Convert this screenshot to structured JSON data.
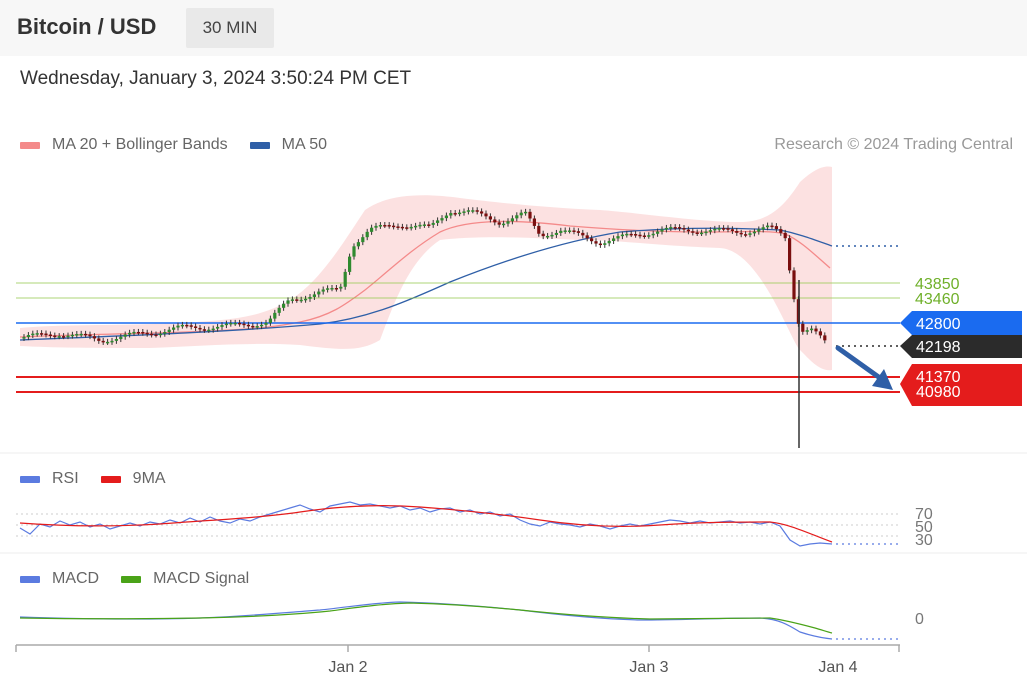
{
  "header": {
    "title": "Bitcoin / USD",
    "timeframe": "30 MIN"
  },
  "datetime": "Wednesday, January 3, 2024 3:50:24 PM CET",
  "legend": {
    "bb_label": "MA 20 + Bollinger Bands",
    "ma50_label": "MA 50",
    "credit": "Research © 2024 Trading Central"
  },
  "rsi_legend": {
    "rsi": "RSI",
    "ma9": "9MA"
  },
  "macd_legend": {
    "macd": "MACD",
    "signal": "MACD Signal"
  },
  "colors": {
    "bb": "#f48a8a",
    "ma50": "#2f5fa7",
    "resistance": "#8cc63e",
    "support": "#e41c1c",
    "pivot": "#1a6bf0",
    "current": "#2b2b2b",
    "arrow": "#2f5fa7",
    "rsi": "#5b7be0",
    "macd_signal": "#4aa318"
  },
  "chart_data": [
    {
      "type": "candlestick",
      "title": "Bitcoin / USD",
      "timeframe": "30 MIN",
      "x_ticks": [
        "Jan 2",
        "Jan 3",
        "Jan 4"
      ],
      "ylim": [
        40000,
        45400
      ],
      "series": [
        {
          "name": "MA 20 + Bollinger Bands"
        },
        {
          "name": "MA 50"
        }
      ],
      "levels": {
        "resistance": [
          43850,
          43460
        ],
        "pivot": 42800,
        "current": 42198,
        "support": [
          41370,
          40980
        ]
      },
      "arrow": "down"
    },
    {
      "type": "line",
      "title": "RSI",
      "series": [
        {
          "name": "RSI"
        },
        {
          "name": "9MA"
        }
      ],
      "y_ticks": [
        70,
        50,
        30
      ],
      "ylim": [
        20,
        80
      ]
    },
    {
      "type": "line",
      "title": "MACD",
      "series": [
        {
          "name": "MACD"
        },
        {
          "name": "MACD Signal"
        }
      ],
      "y_ticks": [
        0
      ]
    }
  ],
  "axis": {
    "jan2": "Jan 2",
    "jan3": "Jan 3",
    "jan4": "Jan 4"
  },
  "levels": {
    "r1": "43850",
    "r2": "43460",
    "pivot": "42800",
    "current": "42198",
    "s1": "41370",
    "s2": "40980"
  },
  "rsi_ticks": {
    "t70": "70",
    "t50": "50",
    "t30": "30"
  },
  "macd_ticks": {
    "t0": "0"
  }
}
